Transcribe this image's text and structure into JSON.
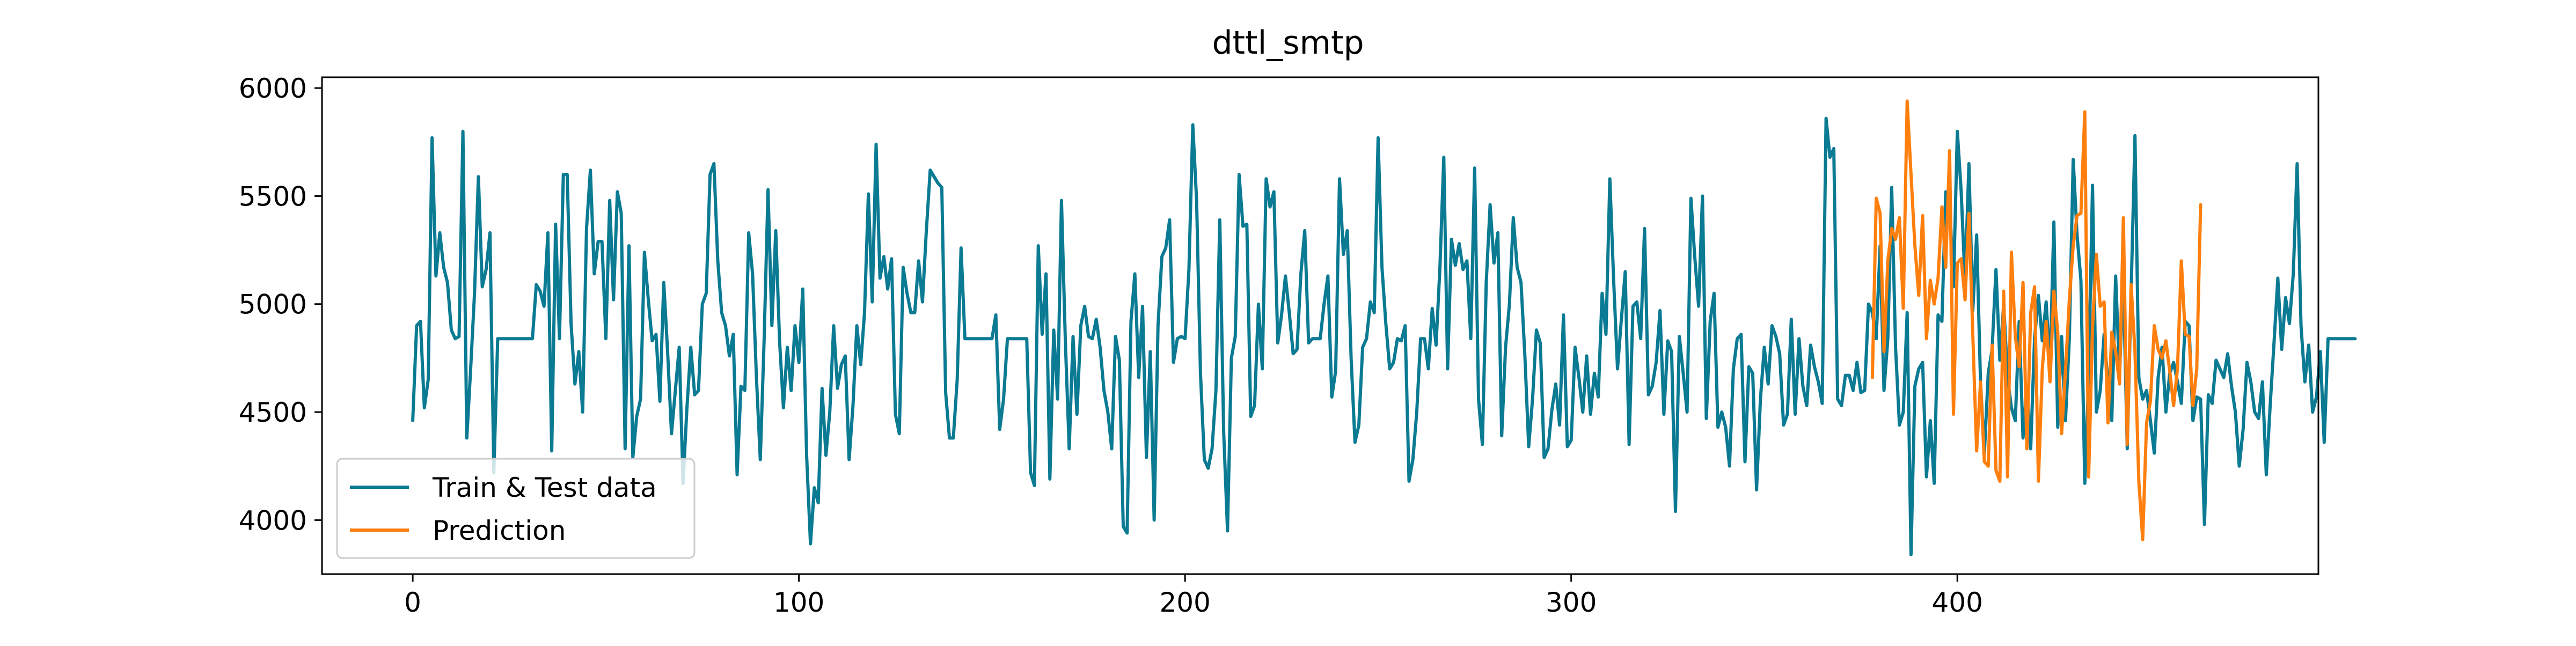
{
  "chart_data": {
    "type": "line",
    "title": "dttl_smtp",
    "xlabel": "",
    "ylabel": "",
    "xlim": [
      -23.5,
      493.5
    ],
    "ylim": [
      3750,
      6050
    ],
    "xticks": [
      0,
      100,
      200,
      300,
      400
    ],
    "xtick_labels": [
      "0",
      "100",
      "200",
      "300",
      "400"
    ],
    "yticks": [
      4000,
      4500,
      5000,
      5500,
      6000
    ],
    "ytick_labels": [
      "4000",
      "4500",
      "5000",
      "5500",
      "6000"
    ],
    "legend_position": "lower-left",
    "grid": false,
    "series": [
      {
        "name": "Train & Test data",
        "color": "#0b7a93",
        "x_start": 0,
        "values": [
          4460,
          4900,
          4920,
          4520,
          4650,
          5770,
          5130,
          5330,
          5170,
          5100,
          4880,
          4840,
          4850,
          5800,
          4380,
          4700,
          5050,
          5590,
          5080,
          5160,
          5330,
          4220,
          4840,
          4840,
          4840,
          4840,
          4840,
          4840,
          4840,
          4840,
          4840,
          4840,
          5090,
          5060,
          4990,
          5330,
          4320,
          5370,
          4840,
          5600,
          5600,
          4910,
          4630,
          4780,
          4500,
          5350,
          5620,
          5140,
          5290,
          5290,
          4840,
          5480,
          5020,
          5520,
          5420,
          4330,
          5270,
          4290,
          4480,
          4560,
          5240,
          5020,
          4830,
          4860,
          4550,
          5100,
          4780,
          4400,
          4600,
          4800,
          4170,
          4520,
          4800,
          4580,
          4600,
          5000,
          5050,
          5600,
          5650,
          5200,
          4960,
          4900,
          4760,
          4860,
          4210,
          4620,
          4600,
          5330,
          5140,
          4660,
          4280,
          4840,
          5530,
          4900,
          5340,
          4830,
          4520,
          4800,
          4600,
          4900,
          4730,
          5070,
          4300,
          3890,
          4150,
          4080,
          4610,
          4300,
          4500,
          4900,
          4610,
          4720,
          4760,
          4280,
          4530,
          4900,
          4720,
          4960,
          5510,
          5010,
          5740,
          5120,
          5220,
          5070,
          5210,
          4490,
          4400,
          5170,
          5050,
          4960,
          4960,
          5200,
          5010,
          5340,
          5620,
          5590,
          5560,
          5540,
          4590,
          4380,
          4380,
          4650,
          5260,
          4840,
          4840,
          4840,
          4840,
          4840,
          4840,
          4840,
          4840,
          4950,
          4420,
          4560,
          4840,
          4840,
          4840,
          4840,
          4840,
          4840,
          4220,
          4160,
          5270,
          4860,
          5140,
          4190,
          4880,
          4560,
          5480,
          4830,
          4330,
          4850,
          4490,
          4900,
          4990,
          4850,
          4840,
          4930,
          4800,
          4600,
          4500,
          4330,
          4850,
          4740,
          3970,
          3940,
          4920,
          5140,
          4660,
          4990,
          4290,
          4780,
          4000,
          4900,
          5220,
          5260,
          5390,
          4730,
          4840,
          4850,
          4840,
          5160,
          5830,
          5480,
          4680,
          4280,
          4240,
          4330,
          4600,
          5390,
          4410,
          3950,
          4750,
          4850,
          5600,
          5360,
          5370,
          4480,
          4530,
          5000,
          4700,
          5580,
          5450,
          5520,
          4820,
          4950,
          5130,
          4960,
          4770,
          4790,
          5140,
          5340,
          4820,
          4840,
          4840,
          4840,
          5000,
          5130,
          4570,
          4690,
          5580,
          5230,
          5340,
          4750,
          4360,
          4440,
          4800,
          4840,
          5010,
          4960,
          5770,
          5170,
          4910,
          4700,
          4730,
          4840,
          4830,
          4900,
          4180,
          4280,
          4500,
          4840,
          4840,
          4700,
          4980,
          4810,
          5170,
          5680,
          4700,
          5300,
          5180,
          5280,
          5160,
          5200,
          4840,
          5630,
          4560,
          4350,
          5100,
          5460,
          5190,
          5330,
          4390,
          4800,
          5000,
          5400,
          5170,
          5100,
          4760,
          4340,
          4560,
          4880,
          4820,
          4290,
          4330,
          4510,
          4630,
          4440,
          4950,
          4340,
          4370,
          4800,
          4660,
          4500,
          4760,
          4490,
          4680,
          4570,
          5050,
          4860,
          5580,
          5110,
          4700,
          4930,
          5150,
          4350,
          4990,
          5010,
          4840,
          5350,
          4580,
          4620,
          4730,
          4970,
          4490,
          4830,
          4780,
          4040,
          4850,
          4680,
          4500,
          5490,
          5220,
          4990,
          5500,
          4470,
          4920,
          5050,
          4430,
          4500,
          4430,
          4250,
          4700,
          4840,
          4860,
          4270,
          4710,
          4680,
          4140,
          4560,
          4800,
          4630,
          4900,
          4850,
          4770,
          4440,
          4490,
          4930,
          4490,
          4840,
          4620,
          4530,
          4810,
          4710,
          4640,
          4540,
          5860,
          5680,
          5720,
          4560,
          4530,
          4670,
          4670,
          4600,
          4730,
          4590,
          4600,
          5000,
          4960,
          4840,
          5270,
          4600,
          4840,
          5540,
          4800,
          4440,
          4500,
          4960,
          3840,
          4620,
          4700,
          4730,
          4200,
          4460,
          4170,
          4950,
          4920,
          5520,
          5480,
          5080,
          5800,
          5520,
          5100,
          5650,
          4970,
          5320,
          4640,
          4310,
          4680,
          4790,
          5160,
          4740,
          5000,
          4660,
          4520,
          4460,
          4920,
          4380,
          4620,
          4330,
          4840,
          5040,
          4830,
          5010,
          4700,
          5380,
          4430,
          4850,
          4460,
          4840,
          5670,
          5320,
          5110,
          4170,
          4660,
          5550,
          4500,
          4600,
          4860,
          4630,
          4460,
          5130,
          4680,
          5110,
          4330,
          5050,
          5780,
          4660,
          4560,
          4600,
          4460,
          4310,
          4660,
          4800,
          4500,
          4680,
          4730,
          4640,
          4540,
          4920,
          4900,
          4460,
          4570,
          4560,
          3980,
          4580,
          4540,
          4740,
          4700,
          4660,
          4770,
          4620,
          4500,
          4250,
          4420,
          4730,
          4640,
          4500,
          4470,
          4640,
          4210,
          4530,
          4820,
          5120,
          4790,
          5030,
          4910,
          5140,
          5650,
          4900,
          4640,
          4810,
          4500,
          4570,
          4780,
          4360,
          4840,
          4840,
          4840,
          4840,
          4840,
          4840,
          4840,
          4840
        ]
      },
      {
        "name": "Prediction",
        "color": "#ff7f0e",
        "x_start": 378,
        "values": [
          4660,
          5490,
          5420,
          4780,
          5200,
          5350,
          5300,
          5400,
          4980,
          5940,
          5600,
          5270,
          5040,
          5410,
          4840,
          5110,
          5000,
          5120,
          5450,
          5170,
          5710,
          4490,
          5190,
          5210,
          5020,
          5420,
          4860,
          4320,
          4640,
          4270,
          4250,
          4810,
          4230,
          4180,
          5060,
          4200,
          5240,
          4850,
          4710,
          5100,
          4330,
          4960,
          5080,
          4180,
          4700,
          4920,
          4640,
          5060,
          4870,
          4400,
          4690,
          5020,
          5270,
          5410,
          5420,
          5890,
          4200,
          4890,
          5230,
          4990,
          5010,
          4450,
          4870,
          4780,
          4630,
          5400,
          4350,
          5090,
          4780,
          4180,
          3910,
          4450,
          4550,
          4900,
          4790,
          4750,
          4830,
          4690,
          4530,
          4700,
          5200,
          4860,
          4850,
          4530,
          4700,
          5460
        ]
      }
    ]
  }
}
